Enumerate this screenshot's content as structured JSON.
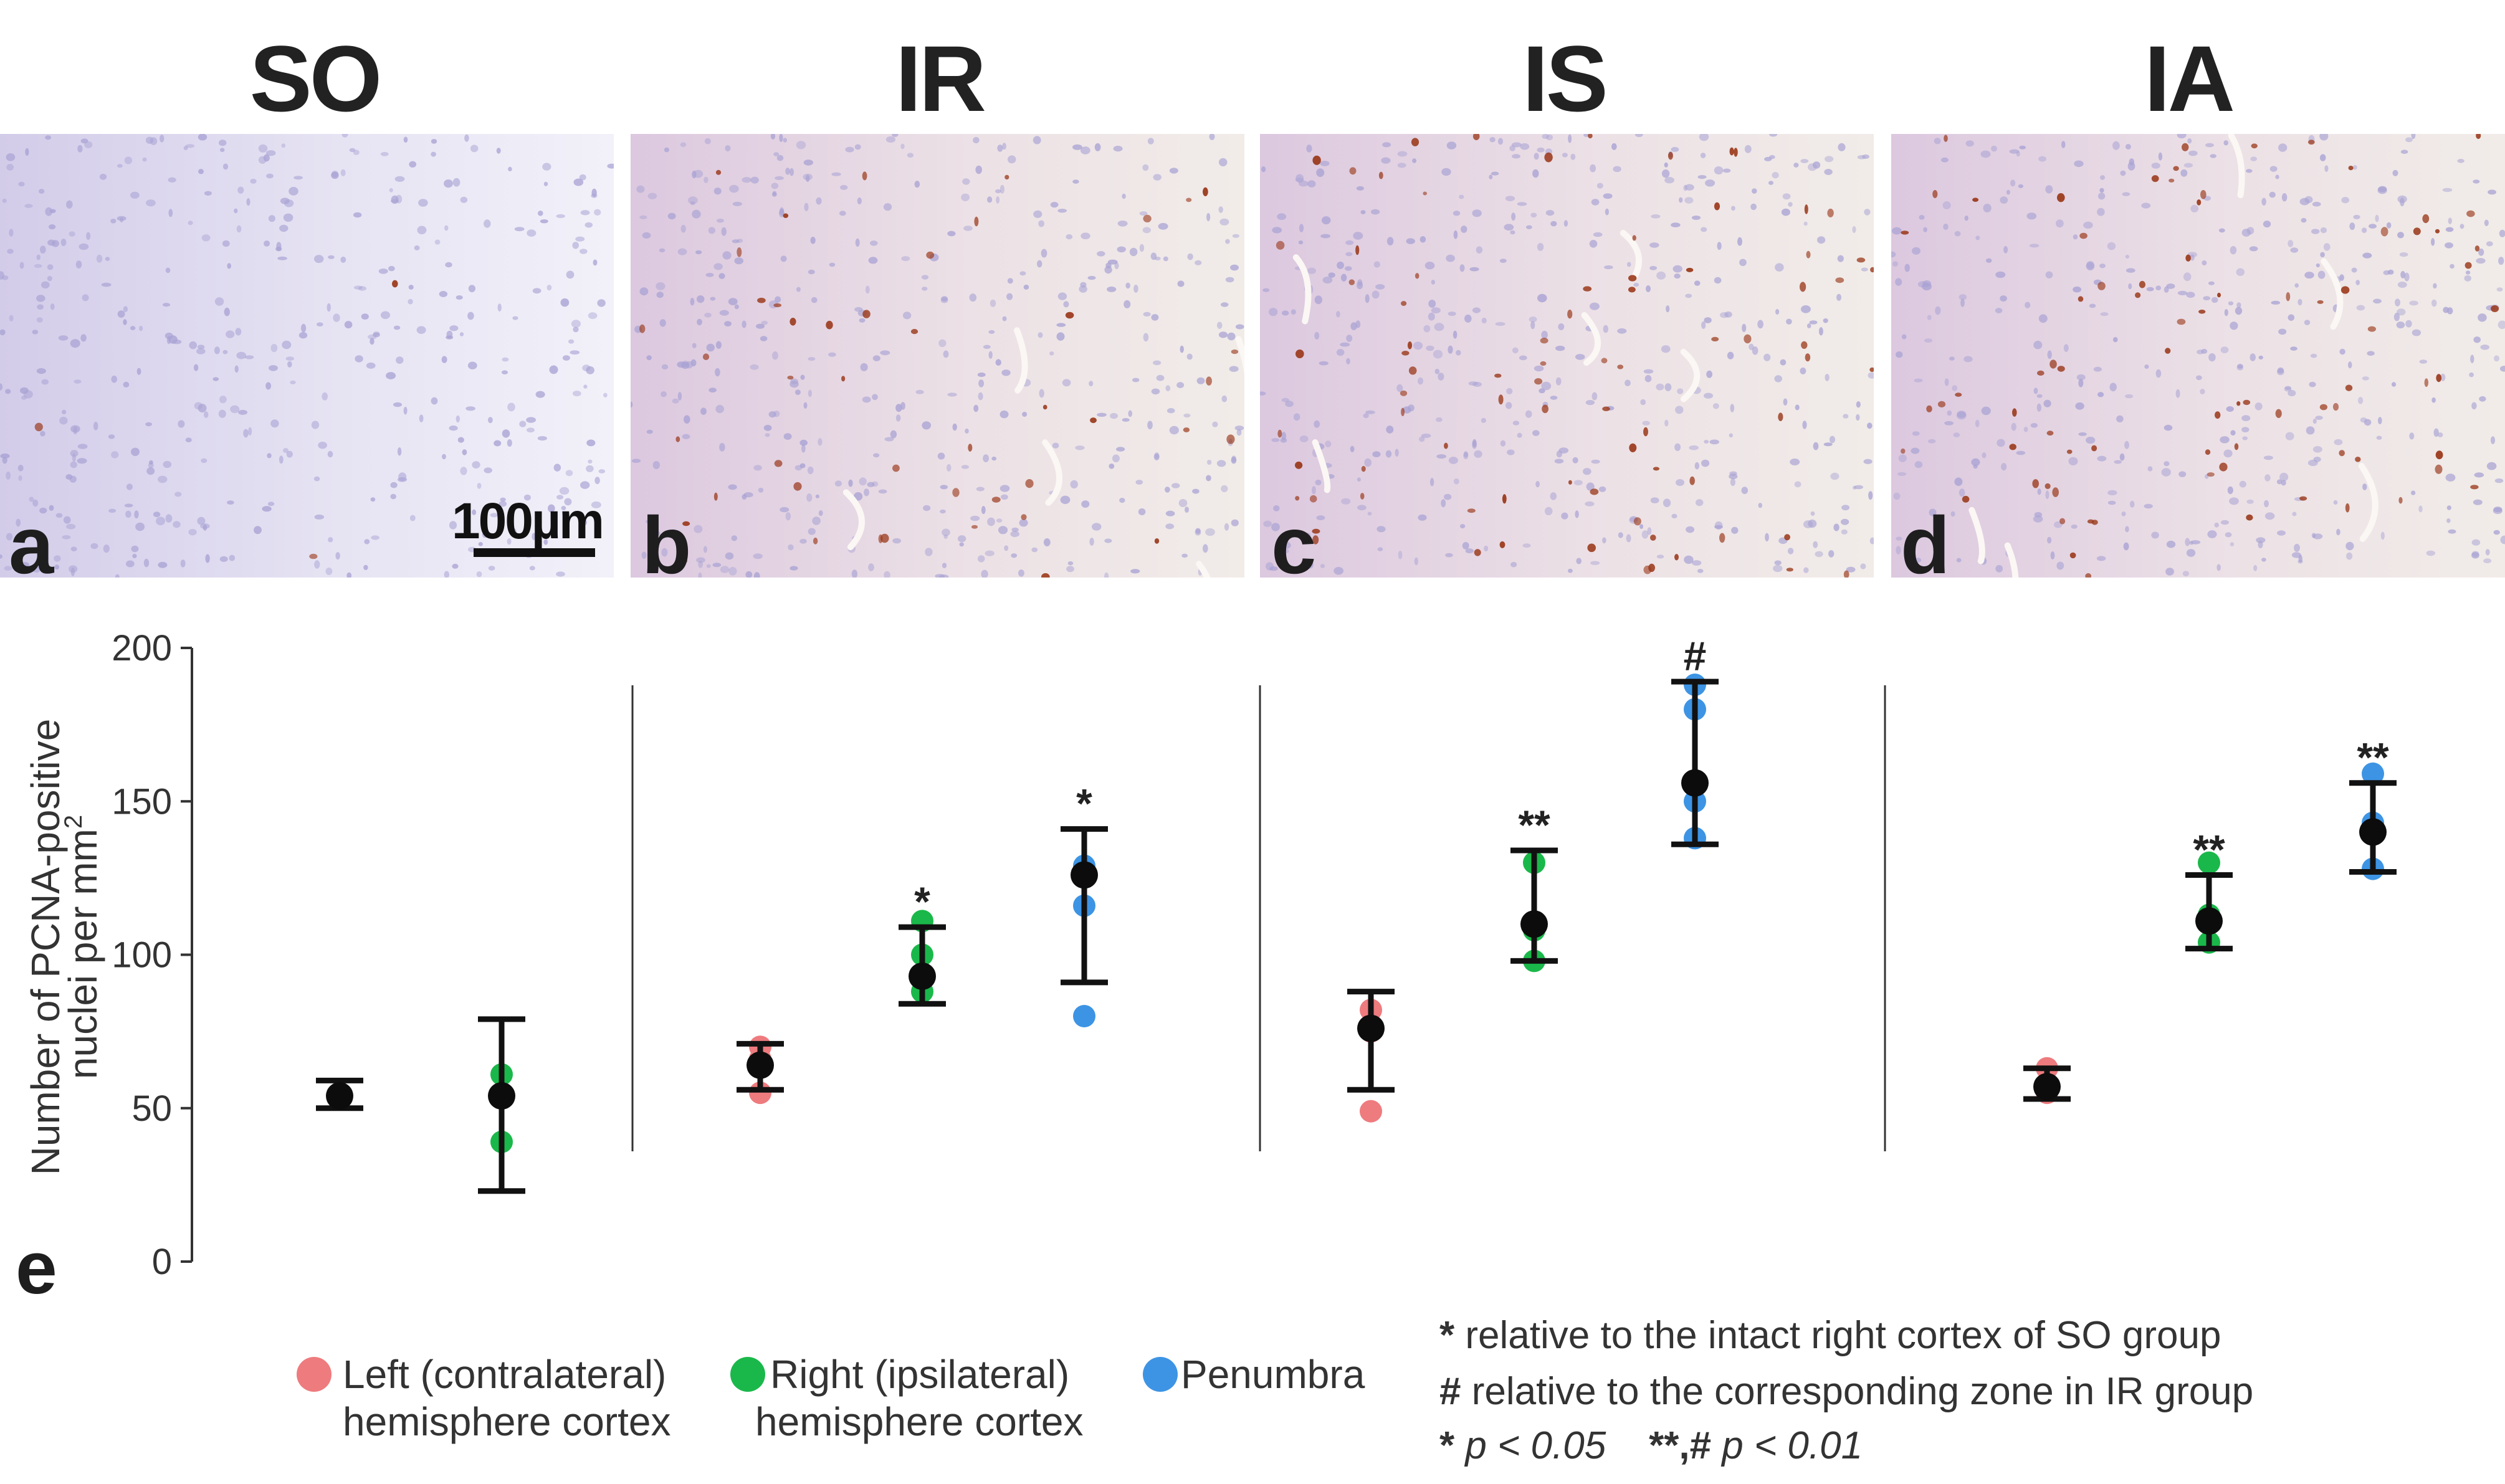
{
  "panels": [
    {
      "title": "SO",
      "letter": "a",
      "stain": "low"
    },
    {
      "title": "IR",
      "letter": "b",
      "stain": "medium"
    },
    {
      "title": "IS",
      "letter": "c",
      "stain": "high"
    },
    {
      "title": "IA",
      "letter": "d",
      "stain": "high"
    }
  ],
  "scale_bar_label": "100µm",
  "chart_panel_letter": "e",
  "chart_data": {
    "type": "scatter",
    "ylabel_line1": "Number of PCNA-positive",
    "ylabel_line2": "nuclei per mm",
    "ylabel_superscript": "2",
    "ylim": [
      0,
      200
    ],
    "yticks": [
      0,
      50,
      100,
      150,
      200
    ],
    "groups": [
      "SO",
      "IR",
      "IS",
      "IA"
    ],
    "series": [
      {
        "name": "Left (contralateral) hemisphere cortex",
        "color": "#ee7b7e"
      },
      {
        "name": "Right (ipsilateral) hemisphere cortex",
        "color": "#1ab84a"
      },
      {
        "name": "Penumbra",
        "color": "#3d94e4"
      }
    ],
    "marks": [
      {
        "group": "SO",
        "series": 0,
        "points": [
          53,
          55
        ],
        "mean": 54,
        "err_low": 50,
        "err_high": 59,
        "sig": ""
      },
      {
        "group": "SO",
        "series": 1,
        "points": [
          61,
          39
        ],
        "mean": 54,
        "err_low": 23,
        "err_high": 79,
        "sig": ""
      },
      {
        "group": "IR",
        "series": 0,
        "points": [
          70,
          55,
          66
        ],
        "mean": 64,
        "err_low": 56,
        "err_high": 71,
        "sig": ""
      },
      {
        "group": "IR",
        "series": 1,
        "points": [
          111,
          100,
          88
        ],
        "mean": 93,
        "err_low": 84,
        "err_high": 109,
        "sig": "*"
      },
      {
        "group": "IR",
        "series": 2,
        "points": [
          129,
          116,
          80
        ],
        "mean": 126,
        "err_low": 91,
        "err_high": 141,
        "sig": "*"
      },
      {
        "group": "IS",
        "series": 0,
        "points": [
          82,
          49,
          75
        ],
        "mean": 76,
        "err_low": 56,
        "err_high": 88,
        "sig": ""
      },
      {
        "group": "IS",
        "series": 1,
        "points": [
          130,
          108,
          98
        ],
        "mean": 110,
        "err_low": 98,
        "err_high": 134,
        "sig": "**"
      },
      {
        "group": "IS",
        "series": 2,
        "points": [
          188,
          180,
          150,
          138
        ],
        "mean": 156,
        "err_low": 136,
        "err_high": 189,
        "sig": "#"
      },
      {
        "group": "IA",
        "series": 0,
        "points": [
          63,
          55,
          58
        ],
        "mean": 57,
        "err_low": 53,
        "err_high": 63,
        "sig": ""
      },
      {
        "group": "IA",
        "series": 1,
        "points": [
          130,
          113,
          104
        ],
        "mean": 111,
        "err_low": 102,
        "err_high": 126,
        "sig": "**"
      },
      {
        "group": "IA",
        "series": 2,
        "points": [
          159,
          143,
          128
        ],
        "mean": 140,
        "err_low": 127,
        "err_high": 156,
        "sig": "**"
      }
    ]
  },
  "legend": [
    {
      "line1": "Left (contralateral)",
      "line2": "hemisphere cortex",
      "color": "#ee7b7e"
    },
    {
      "line1": "Right (ipsilateral)",
      "line2": "hemisphere cortex",
      "color": "#1ab84a"
    },
    {
      "line1": "Penumbra",
      "line2": "",
      "color": "#3d94e4"
    }
  ],
  "notes": {
    "star_symbol": "*",
    "star_text": "relative to the intact right cortex of SO group",
    "hash_symbol": "#",
    "hash_text": "relative to the corresponding zone in IR group",
    "p1_symbol": "*",
    "p1_text": "p < 0.05",
    "p2_symbol": "**,#",
    "p2_text": "p < 0.01"
  }
}
